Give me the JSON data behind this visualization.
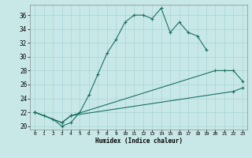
{
  "xlabel": "Humidex (Indice chaleur)",
  "bg_color": "#c8e8e8",
  "line_color": "#1a7060",
  "grid_color": "#a8d4d4",
  "xlim": [
    -0.5,
    23.5
  ],
  "ylim": [
    19.5,
    37.5
  ],
  "yticks": [
    20,
    22,
    24,
    26,
    28,
    30,
    32,
    34,
    36
  ],
  "xticks": [
    0,
    1,
    2,
    3,
    4,
    5,
    6,
    7,
    8,
    9,
    10,
    11,
    12,
    13,
    14,
    15,
    16,
    17,
    18,
    19,
    20,
    21,
    22,
    23
  ],
  "s1x": [
    0,
    1,
    2,
    3,
    4,
    5,
    6,
    7,
    8,
    9,
    10,
    11,
    12,
    13,
    14,
    15,
    16,
    17,
    18,
    19
  ],
  "s1y": [
    22.0,
    21.5,
    21.0,
    20.0,
    20.5,
    22.0,
    24.5,
    27.5,
    30.5,
    32.5,
    35.0,
    36.0,
    36.0,
    35.5,
    37.0,
    33.5,
    35.0,
    33.5,
    33.0,
    31.0
  ],
  "s2x": [
    0,
    3,
    4,
    20,
    21,
    22,
    23
  ],
  "s2y": [
    22.0,
    20.5,
    21.5,
    28.0,
    28.0,
    28.0,
    26.5
  ],
  "s3x": [
    0,
    3,
    4,
    22,
    23
  ],
  "s3y": [
    22.0,
    20.5,
    21.5,
    25.0,
    25.5
  ]
}
